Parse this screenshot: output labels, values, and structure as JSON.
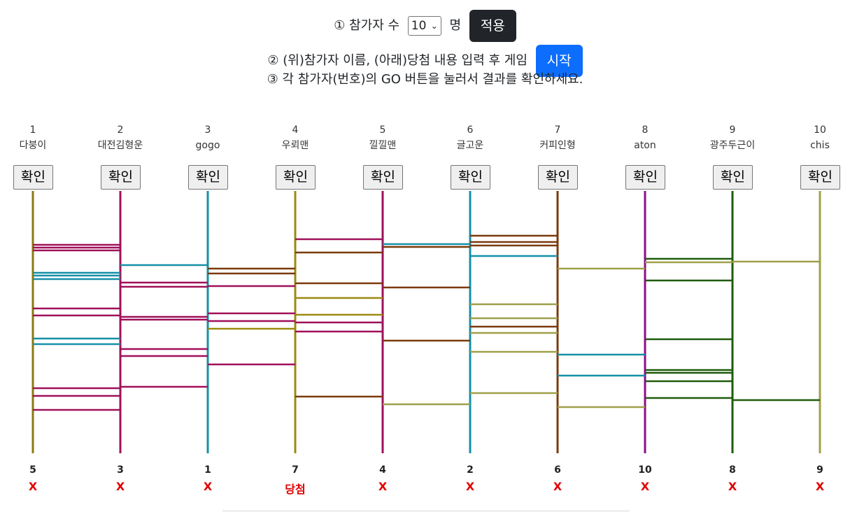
{
  "controls": {
    "step1_prefix": "① 참가자 수",
    "count_value": "10",
    "step1_suffix": "명",
    "apply_label": "적용",
    "step2_text": "② (위)참가자 이름, (아래)당첨 내용 입력 후 게임",
    "start_label": "시작",
    "step3_text": "③ 각 참가자(번호)의 GO 버튼을 눌러서 결과를 확인하세요."
  },
  "participants": [
    {
      "number": "1",
      "name": "다붕이",
      "button": "확인",
      "color": "#8b7a12",
      "result_number": "5",
      "result_text": "X"
    },
    {
      "number": "2",
      "name": "대전김형운",
      "button": "확인",
      "color": "#a0105a",
      "result_number": "3",
      "result_text": "X"
    },
    {
      "number": "3",
      "name": "gogo",
      "button": "확인",
      "color": "#1590a8",
      "result_number": "1",
      "result_text": "X"
    },
    {
      "number": "4",
      "name": "우뢰맨",
      "button": "확인",
      "color": "#9c8a10",
      "result_number": "7",
      "result_text": "당첨"
    },
    {
      "number": "5",
      "name": "낄낄맨",
      "button": "확인",
      "color": "#a0105a",
      "result_number": "4",
      "result_text": "X"
    },
    {
      "number": "6",
      "name": "글고운",
      "button": "확인",
      "color": "#1590a8",
      "result_number": "2",
      "result_text": "X"
    },
    {
      "number": "7",
      "name": "커피인형",
      "button": "확인",
      "color": "#7a3a0c",
      "result_number": "6",
      "result_text": "X"
    },
    {
      "number": "8",
      "name": "aton",
      "button": "확인",
      "color": "#8a0e8a",
      "result_number": "10",
      "result_text": "X"
    },
    {
      "number": "9",
      "name": "광주두근이",
      "button": "확인",
      "color": "#1e5c0c",
      "result_number": "8",
      "result_text": "X"
    },
    {
      "number": "10",
      "name": "chis",
      "button": "확인",
      "color": "#9fa04a",
      "result_number": "9",
      "result_text": "X"
    }
  ],
  "rungs": [
    {
      "left": 1,
      "level": 350,
      "color": "#a0105a"
    },
    {
      "left": 1,
      "level": 354,
      "color": "#a0105a"
    },
    {
      "left": 1,
      "level": 358,
      "color": "#a0105a"
    },
    {
      "left": 1,
      "level": 390,
      "color": "#1590a8"
    },
    {
      "left": 1,
      "level": 394,
      "color": "#1590a8"
    },
    {
      "left": 1,
      "level": 399,
      "color": "#1590a8"
    },
    {
      "left": 1,
      "level": 441,
      "color": "#a0105a"
    },
    {
      "left": 1,
      "level": 451,
      "color": "#a0105a"
    },
    {
      "left": 1,
      "level": 484,
      "color": "#1590a8"
    },
    {
      "left": 1,
      "level": 492,
      "color": "#1590a8"
    },
    {
      "left": 1,
      "level": 555,
      "color": "#a0105a"
    },
    {
      "left": 1,
      "level": 566,
      "color": "#a0105a"
    },
    {
      "left": 1,
      "level": 586,
      "color": "#a0105a"
    },
    {
      "left": 2,
      "level": 379,
      "color": "#1590a8"
    },
    {
      "left": 2,
      "level": 404,
      "color": "#a0105a"
    },
    {
      "left": 2,
      "level": 410,
      "color": "#a0105a"
    },
    {
      "left": 2,
      "level": 453,
      "color": "#a0105a"
    },
    {
      "left": 2,
      "level": 457,
      "color": "#a0105a"
    },
    {
      "left": 2,
      "level": 499,
      "color": "#a0105a"
    },
    {
      "left": 2,
      "level": 509,
      "color": "#a0105a"
    },
    {
      "left": 2,
      "level": 553,
      "color": "#a0105a"
    },
    {
      "left": 3,
      "level": 384,
      "color": "#7a3a0c"
    },
    {
      "left": 3,
      "level": 391,
      "color": "#7a3a0c"
    },
    {
      "left": 3,
      "level": 409,
      "color": "#a0105a"
    },
    {
      "left": 3,
      "level": 448,
      "color": "#a0105a"
    },
    {
      "left": 3,
      "level": 459,
      "color": "#a0105a"
    },
    {
      "left": 3,
      "level": 470,
      "color": "#9c8a10"
    },
    {
      "left": 3,
      "level": 521,
      "color": "#a0105a"
    },
    {
      "left": 4,
      "level": 342,
      "color": "#a0105a"
    },
    {
      "left": 4,
      "level": 361,
      "color": "#7a3a0c"
    },
    {
      "left": 4,
      "level": 405,
      "color": "#7a3a0c"
    },
    {
      "left": 4,
      "level": 426,
      "color": "#9c8a10"
    },
    {
      "left": 4,
      "level": 450,
      "color": "#9c8a10"
    },
    {
      "left": 4,
      "level": 461,
      "color": "#a0105a"
    },
    {
      "left": 4,
      "level": 474,
      "color": "#a0105a"
    },
    {
      "left": 4,
      "level": 567,
      "color": "#7a3a0c"
    },
    {
      "left": 5,
      "level": 349,
      "color": "#1590a8"
    },
    {
      "left": 5,
      "level": 353,
      "color": "#7a3a0c"
    },
    {
      "left": 5,
      "level": 411,
      "color": "#7a3a0c"
    },
    {
      "left": 5,
      "level": 487,
      "color": "#7a3a0c"
    },
    {
      "left": 5,
      "level": 578,
      "color": "#9fa04a"
    },
    {
      "left": 6,
      "level": 337,
      "color": "#7a3a0c"
    },
    {
      "left": 6,
      "level": 346,
      "color": "#7a3a0c"
    },
    {
      "left": 6,
      "level": 351,
      "color": "#7a3a0c"
    },
    {
      "left": 6,
      "level": 366,
      "color": "#1590a8"
    },
    {
      "left": 6,
      "level": 435,
      "color": "#9fa04a"
    },
    {
      "left": 6,
      "level": 455,
      "color": "#9fa04a"
    },
    {
      "left": 6,
      "level": 467,
      "color": "#7a3a0c"
    },
    {
      "left": 6,
      "level": 476,
      "color": "#9fa04a"
    },
    {
      "left": 6,
      "level": 503,
      "color": "#9fa04a"
    },
    {
      "left": 6,
      "level": 562,
      "color": "#9fa04a"
    },
    {
      "left": 7,
      "level": 384,
      "color": "#9fa04a"
    },
    {
      "left": 7,
      "level": 507,
      "color": "#1590a8"
    },
    {
      "left": 7,
      "level": 537,
      "color": "#1590a8"
    },
    {
      "left": 7,
      "level": 582,
      "color": "#9fa04a"
    },
    {
      "left": 8,
      "level": 370,
      "color": "#1e5c0c"
    },
    {
      "left": 8,
      "level": 375,
      "color": "#9fa04a"
    },
    {
      "left": 8,
      "level": 401,
      "color": "#1e5c0c"
    },
    {
      "left": 8,
      "level": 485,
      "color": "#1e5c0c"
    },
    {
      "left": 8,
      "level": 529,
      "color": "#1e5c0c"
    },
    {
      "left": 8,
      "level": 533,
      "color": "#1e5c0c"
    },
    {
      "left": 8,
      "level": 545,
      "color": "#1e5c0c"
    },
    {
      "left": 8,
      "level": 569,
      "color": "#1e5c0c"
    },
    {
      "left": 9,
      "level": 374,
      "color": "#9fa04a"
    },
    {
      "left": 9,
      "level": 572,
      "color": "#1e5c0c"
    }
  ]
}
